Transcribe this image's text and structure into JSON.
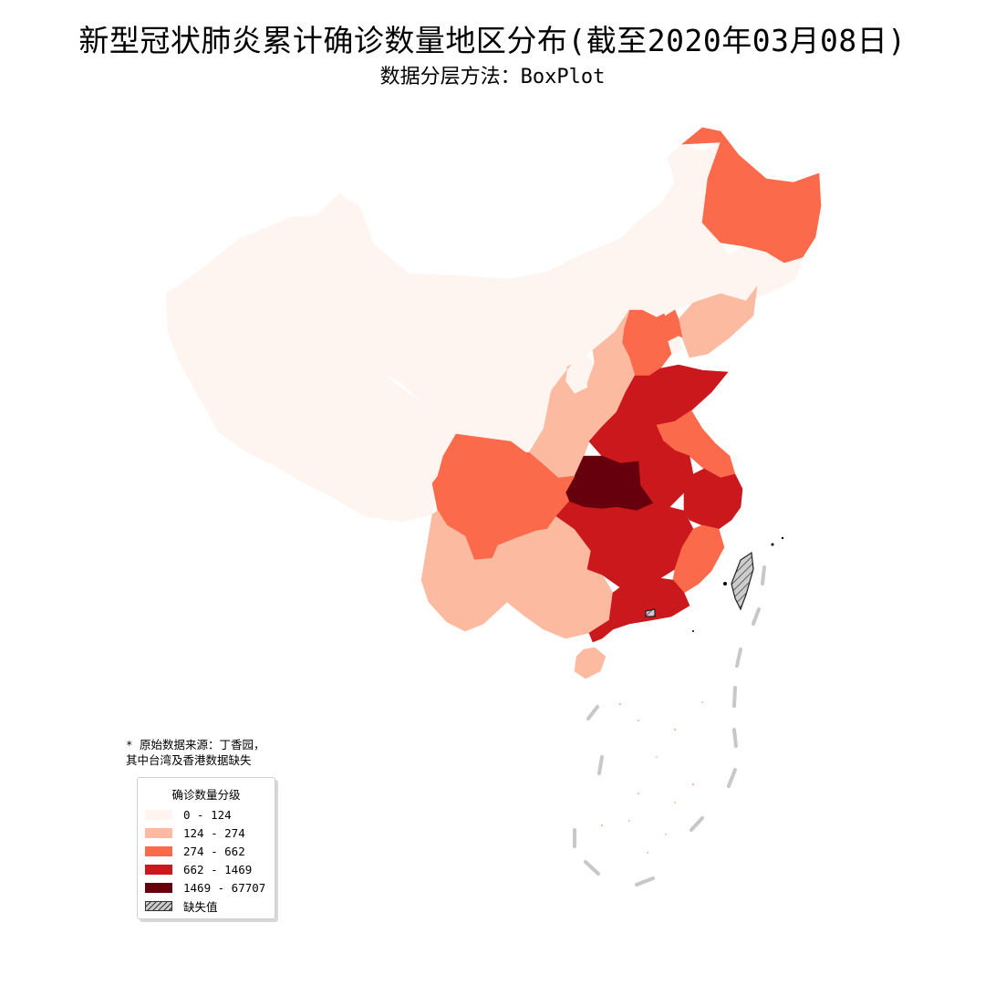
{
  "title": "新型冠状肺炎累计确诊数量地区分布(截至2020年03月08日)",
  "subtitle": "数据分层方法：BoxPlot",
  "source_note": "* 原始数据来源：丁香园，\n其中台湾及香港数据缺失",
  "legend": {
    "title": "确诊数量分级",
    "items": [
      {
        "label": "0 - 124",
        "color": "#fff5f0"
      },
      {
        "label": "124 - 274",
        "color": "#fcbba1"
      },
      {
        "label": "274 - 662",
        "color": "#fb6a4a"
      },
      {
        "label": "662 - 1469",
        "color": "#cb181d"
      },
      {
        "label": "1469 - 67707",
        "color": "#67000d"
      },
      {
        "label": "缺失值",
        "color": "#cccccc",
        "hatched": true
      }
    ]
  },
  "regions": [
    {
      "name": "新疆",
      "class": 0
    },
    {
      "name": "西藏",
      "class": 0
    },
    {
      "name": "青海",
      "class": 0
    },
    {
      "name": "甘肃",
      "class": 0
    },
    {
      "name": "内蒙古",
      "class": 0
    },
    {
      "name": "宁夏",
      "class": 0
    },
    {
      "name": "吉林",
      "class": 0
    },
    {
      "name": "天津",
      "class": 0
    },
    {
      "name": "黑龙江",
      "class": 2
    },
    {
      "name": "辽宁",
      "class": 1
    },
    {
      "name": "北京",
      "class": 2
    },
    {
      "name": "河北",
      "class": 2
    },
    {
      "name": "山西",
      "class": 1
    },
    {
      "name": "陕西",
      "class": 1
    },
    {
      "name": "山东",
      "class": 3
    },
    {
      "name": "河南",
      "class": 3
    },
    {
      "name": "江苏",
      "class": 2
    },
    {
      "name": "安徽",
      "class": 3
    },
    {
      "name": "湖北",
      "class": 4
    },
    {
      "name": "重庆",
      "class": 2
    },
    {
      "name": "四川",
      "class": 2
    },
    {
      "name": "云南",
      "class": 1
    },
    {
      "name": "贵州",
      "class": 1
    },
    {
      "name": "广西",
      "class": 1
    },
    {
      "name": "湖南",
      "class": 3
    },
    {
      "name": "江西",
      "class": 3
    },
    {
      "name": "浙江",
      "class": 3
    },
    {
      "name": "福建",
      "class": 2
    },
    {
      "name": "广东",
      "class": 3
    },
    {
      "name": "海南",
      "class": 1
    },
    {
      "name": "台湾",
      "class": 5
    },
    {
      "name": "香港",
      "class": 5
    }
  ]
}
